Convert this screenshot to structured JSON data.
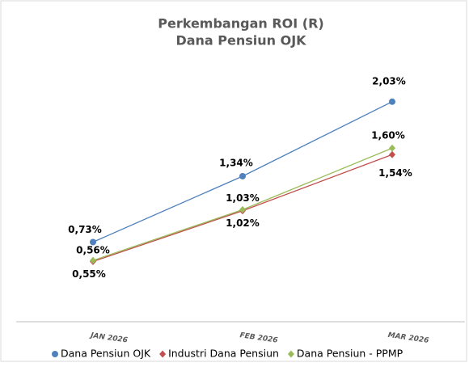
{
  "chart_data": {
    "type": "line",
    "title": "Perkembangan ROI (R)",
    "subtitle": "Dana Pensiun OJK",
    "categories": [
      "JAN 2026",
      "FEB 2026",
      "MAR 2026"
    ],
    "series": [
      {
        "name": "Dana Pensiun OJK",
        "color": "#4f81bd",
        "marker": "circle",
        "values": [
          0.73,
          1.34,
          2.03
        ],
        "value_labels": [
          "0,73%",
          "1,34%",
          "2,03%"
        ]
      },
      {
        "name": "Industri Dana Pensiun",
        "color": "#c0504d",
        "marker": "diamond",
        "values": [
          0.55,
          1.02,
          1.54
        ],
        "value_labels": [
          "0,55%",
          "1,02%",
          "1,54%"
        ]
      },
      {
        "name": "Dana Pensiun - PPMP",
        "color": "#9bbb59",
        "marker": "diamond",
        "values": [
          0.56,
          1.03,
          1.6
        ],
        "value_labels": [
          "0,56%",
          "1,03%",
          "1,60%"
        ]
      }
    ],
    "ylim": [
      0,
      2.5
    ],
    "legend": "bottom"
  }
}
